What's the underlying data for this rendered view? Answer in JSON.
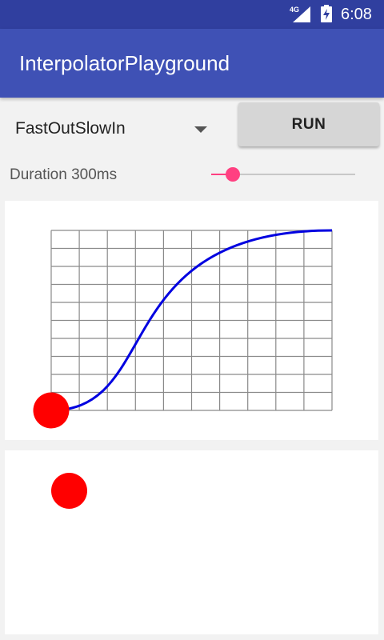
{
  "status_bar": {
    "network": "4G",
    "time": "6:08",
    "icons": [
      "signal-icon",
      "battery-charging-icon"
    ]
  },
  "app_bar": {
    "title": "InterpolatorPlayground"
  },
  "controls": {
    "interpolator_selected": "FastOutSlowIn",
    "run_label": "RUN",
    "duration_label": "Duration 300ms",
    "duration_fraction": 0.15
  },
  "graph": {
    "interpolator": "FastOutSlowIn",
    "control_points": [
      [
        0.4,
        0.0
      ],
      [
        0.2,
        1.0
      ]
    ],
    "grid_columns": 10,
    "grid_rows": 10,
    "progress": 0.0
  },
  "colors": {
    "status_bar": "#303f9f",
    "app_bar": "#3f51b5",
    "accent": "#ff4081",
    "curve": "#0000e0",
    "grid": "#8a8a8a",
    "ball": "#ff0000"
  }
}
